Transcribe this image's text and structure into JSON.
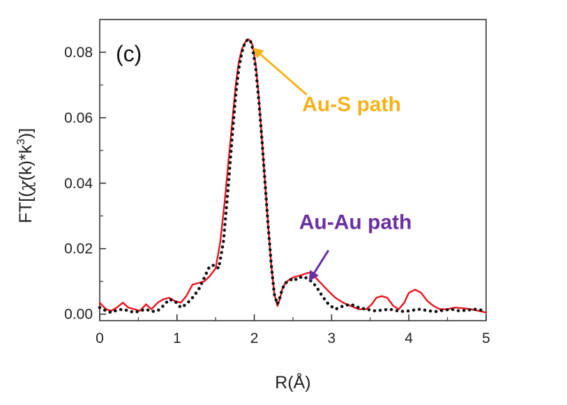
{
  "chart_data": {
    "type": "line",
    "panel_label": "(c)",
    "xlabel": "R(Å)",
    "ylabel_parts": [
      "FT[(",
      "χ",
      "(k)*k",
      "3",
      ")]"
    ],
    "xlim": [
      0,
      5
    ],
    "ylim": [
      -0.002,
      0.09
    ],
    "x_ticks": [
      0,
      1,
      2,
      3,
      4,
      5
    ],
    "x_tick_labels": [
      "0",
      "1",
      "2",
      "3",
      "4",
      "5"
    ],
    "y_ticks": [
      0,
      0.02,
      0.04,
      0.06,
      0.08
    ],
    "y_tick_labels": [
      "0.00",
      "0.02",
      "0.04",
      "0.06",
      "0.08"
    ],
    "grid": false,
    "colors": {
      "fit": "#e8141c",
      "data": "#111111",
      "au_s": "#f5b21a",
      "au_au": "#6a2fa0"
    },
    "series": [
      {
        "style": "solid",
        "color": "#e8141c",
        "x": [
          0.0,
          0.08,
          0.15,
          0.22,
          0.3,
          0.37,
          0.45,
          0.52,
          0.6,
          0.67,
          0.75,
          0.82,
          0.9,
          0.97,
          1.05,
          1.12,
          1.2,
          1.28,
          1.35,
          1.42,
          1.5,
          1.56,
          1.62,
          1.68,
          1.72,
          1.76,
          1.8,
          1.84,
          1.88,
          1.92,
          1.95,
          1.98,
          2.02,
          2.06,
          2.1,
          2.14,
          2.18,
          2.22,
          2.26,
          2.3,
          2.33,
          2.36,
          2.4,
          2.45,
          2.5,
          2.55,
          2.62,
          2.68,
          2.74,
          2.8,
          2.88,
          2.96,
          3.05,
          3.15,
          3.25,
          3.35,
          3.45,
          3.52,
          3.58,
          3.65,
          3.72,
          3.8,
          3.87,
          3.94,
          4.0,
          4.08,
          4.16,
          4.24,
          4.32,
          4.4,
          4.5,
          4.6,
          4.7,
          4.8,
          4.9,
          5.0
        ],
        "y": [
          0.0035,
          0.0015,
          0.001,
          0.002,
          0.0035,
          0.002,
          0.0015,
          0.001,
          0.003,
          0.0015,
          0.0035,
          0.0045,
          0.005,
          0.004,
          0.0035,
          0.0055,
          0.009,
          0.0095,
          0.01,
          0.0115,
          0.014,
          0.022,
          0.035,
          0.05,
          0.06,
          0.07,
          0.077,
          0.081,
          0.083,
          0.084,
          0.0835,
          0.082,
          0.076,
          0.066,
          0.053,
          0.04,
          0.027,
          0.015,
          0.006,
          0.0025,
          0.0045,
          0.0075,
          0.0095,
          0.0105,
          0.0112,
          0.0115,
          0.012,
          0.0125,
          0.0128,
          0.011,
          0.009,
          0.007,
          0.005,
          0.0035,
          0.0025,
          0.0015,
          0.0015,
          0.003,
          0.005,
          0.0055,
          0.005,
          0.0025,
          0.0015,
          0.0035,
          0.0065,
          0.0075,
          0.0065,
          0.004,
          0.0025,
          0.0015,
          0.0015,
          0.002,
          0.0018,
          0.0015,
          0.001,
          0.0005
        ]
      },
      {
        "style": "dotted",
        "color": "#111111",
        "x": [
          0.0,
          0.08,
          0.15,
          0.22,
          0.3,
          0.37,
          0.45,
          0.52,
          0.6,
          0.67,
          0.75,
          0.82,
          0.9,
          0.97,
          1.05,
          1.12,
          1.2,
          1.28,
          1.35,
          1.42,
          1.48,
          1.54,
          1.6,
          1.66,
          1.72,
          1.76,
          1.8,
          1.84,
          1.88,
          1.92,
          1.95,
          1.98,
          2.02,
          2.06,
          2.1,
          2.14,
          2.18,
          2.22,
          2.26,
          2.3,
          2.33,
          2.36,
          2.4,
          2.45,
          2.5,
          2.55,
          2.62,
          2.68,
          2.74,
          2.8,
          2.88,
          2.96,
          3.05,
          3.15,
          3.25,
          3.35,
          3.45,
          3.55,
          3.65,
          3.75,
          3.85,
          3.95,
          4.05,
          4.15,
          4.25,
          4.35,
          4.45,
          4.55,
          4.65,
          4.75,
          4.85,
          4.95,
          5.0
        ],
        "y": [
          0.002,
          0.001,
          0.0005,
          0.0012,
          0.0015,
          0.001,
          0.0005,
          0.001,
          0.0015,
          0.0008,
          0.001,
          0.0025,
          0.0045,
          0.004,
          0.002,
          0.003,
          0.005,
          0.0075,
          0.011,
          0.0145,
          0.015,
          0.014,
          0.022,
          0.038,
          0.056,
          0.067,
          0.075,
          0.08,
          0.083,
          0.084,
          0.0835,
          0.081,
          0.075,
          0.065,
          0.053,
          0.04,
          0.027,
          0.015,
          0.006,
          0.003,
          0.005,
          0.0075,
          0.0095,
          0.01,
          0.011,
          0.0105,
          0.0115,
          0.011,
          0.01,
          0.0085,
          0.0055,
          0.003,
          0.0015,
          0.0025,
          0.003,
          0.002,
          0.0015,
          0.001,
          0.0012,
          0.0015,
          0.001,
          0.0008,
          0.0012,
          0.0015,
          0.001,
          0.0008,
          0.0012,
          0.0015,
          0.001,
          0.0012,
          0.0015,
          0.0012,
          0.001
        ]
      }
    ],
    "annotations": [
      {
        "text": "Au-S path",
        "color": "#f5b21a",
        "arrow_from": [
          2.68,
          0.067
        ],
        "arrow_to": [
          2.0,
          0.081
        ],
        "label_x": 2.62,
        "label_y": 0.062
      },
      {
        "text": "Au-Au path",
        "color": "#6a2fa0",
        "arrow_from": [
          2.96,
          0.0195
        ],
        "arrow_to": [
          2.72,
          0.0105
        ],
        "label_x": 2.58,
        "label_y": 0.026
      }
    ]
  }
}
